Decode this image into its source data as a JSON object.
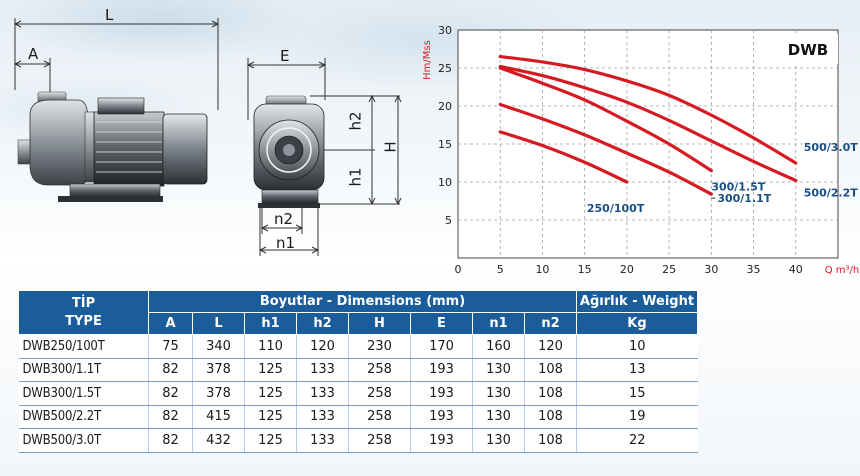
{
  "drawings": {
    "labels": {
      "L": "L",
      "A": "A",
      "E": "E",
      "h2": "h2",
      "h1": "h1",
      "H": "H",
      "n2": "n2",
      "n1": "n1"
    }
  },
  "chart_data": {
    "type": "line",
    "title": "DWB",
    "xlabel": "Q m³/h",
    "ylabel": "Hm/Mss",
    "xlim": [
      0,
      45
    ],
    "ylim": [
      0,
      30
    ],
    "x_ticks": [
      "0",
      "5",
      "10",
      "15",
      "20",
      "25",
      "30",
      "35",
      "40"
    ],
    "y_ticks": [
      "5",
      "10",
      "15",
      "20",
      "25",
      "30"
    ],
    "grid": true,
    "line_color": "#d61a22",
    "series": [
      {
        "name": "500/3.0T",
        "x": [
          5,
          10,
          15,
          20,
          25,
          30,
          35,
          40
        ],
        "y": [
          26.5,
          25.8,
          24.8,
          23.3,
          21.4,
          18.8,
          15.8,
          12.5
        ]
      },
      {
        "name": "500/2.2T",
        "x": [
          5,
          10,
          15,
          20,
          25,
          30,
          35,
          40
        ],
        "y": [
          25.2,
          24.0,
          22.4,
          20.5,
          18.1,
          15.4,
          12.7,
          10.2
        ]
      },
      {
        "name": "300/1.5T",
        "x": [
          5,
          10,
          15,
          20,
          25,
          30
        ],
        "y": [
          25.0,
          23.0,
          20.8,
          18.0,
          15.0,
          11.5
        ]
      },
      {
        "name": "300/1.1T",
        "x": [
          5,
          10,
          15,
          20,
          25,
          30
        ],
        "y": [
          20.2,
          18.3,
          16.2,
          13.8,
          11.3,
          8.4
        ]
      },
      {
        "name": "250/100T",
        "x": [
          5,
          10,
          15,
          20
        ],
        "y": [
          16.6,
          14.8,
          12.6,
          10.0
        ]
      }
    ]
  },
  "table": {
    "header": {
      "tip": "TİP",
      "type": "TYPE",
      "dimensions": "Boyutlar -  Dimensions (mm)",
      "weight": "Ağırlık - Weight",
      "columns": [
        "A",
        "L",
        "h1",
        "h2",
        "H",
        "E",
        "n1",
        "n2"
      ],
      "weight_unit": "Kg"
    },
    "rows": [
      {
        "type": "DWB250/100T",
        "values": [
          "75",
          "340",
          "110",
          "120",
          "230",
          "170",
          "160",
          "120"
        ],
        "weight": "10"
      },
      {
        "type": "DWB300/1.1T",
        "values": [
          "82",
          "378",
          "125",
          "133",
          "258",
          "193",
          "130",
          "108"
        ],
        "weight": "13"
      },
      {
        "type": "DWB300/1.5T",
        "values": [
          "82",
          "378",
          "125",
          "133",
          "258",
          "193",
          "130",
          "108"
        ],
        "weight": "15"
      },
      {
        "type": "DWB500/2.2T",
        "values": [
          "82",
          "415",
          "125",
          "133",
          "258",
          "193",
          "130",
          "108"
        ],
        "weight": "19"
      },
      {
        "type": "DWB500/3.0T",
        "values": [
          "82",
          "432",
          "125",
          "133",
          "258",
          "193",
          "130",
          "108"
        ],
        "weight": "22"
      }
    ]
  }
}
